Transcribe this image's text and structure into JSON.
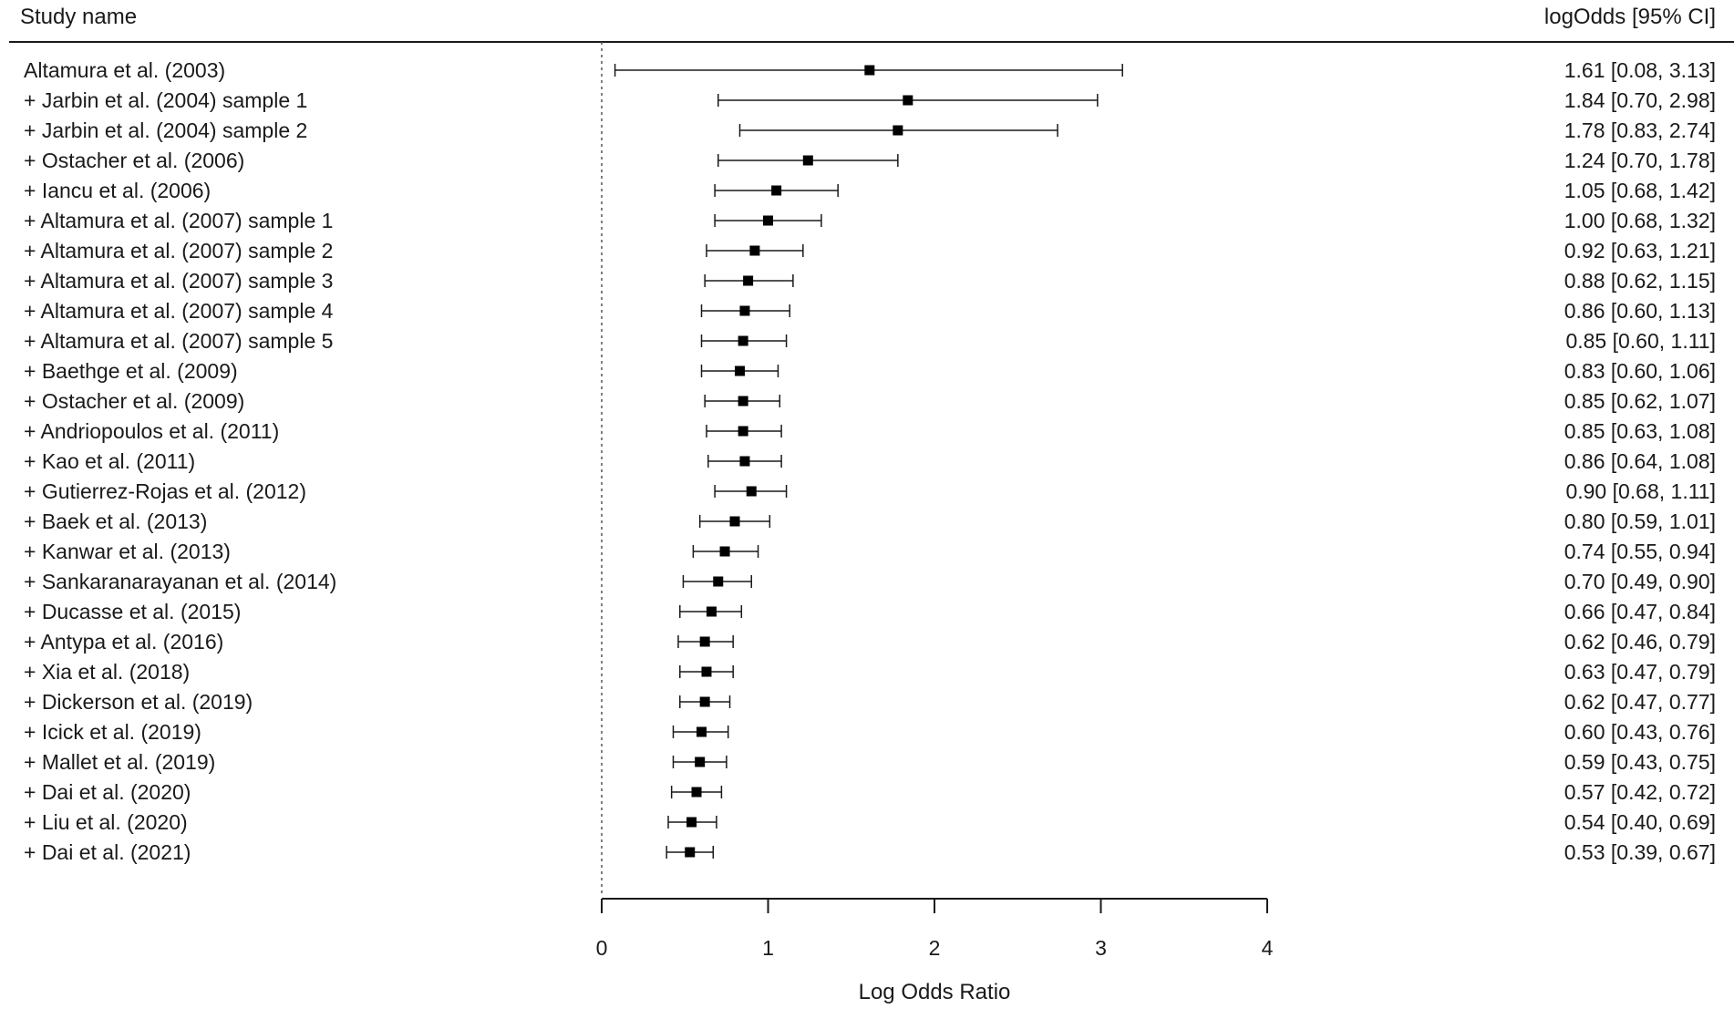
{
  "header": {
    "study_col": "Study name",
    "estimate_col": "logOdds [95% CI]"
  },
  "chart_data": {
    "type": "forest",
    "xlabel": "Log Odds Ratio",
    "xlim": [
      0,
      4
    ],
    "xticks": [
      0,
      1,
      2,
      3,
      4
    ],
    "reference_line": 0,
    "studies": [
      {
        "label": "Altamura et al. (2003)",
        "estimate": 1.61,
        "lower": 0.08,
        "upper": 3.13,
        "ci_text": "1.61 [0.08, 3.13]"
      },
      {
        "label": "+ Jarbin et al. (2004) sample 1",
        "estimate": 1.84,
        "lower": 0.7,
        "upper": 2.98,
        "ci_text": "1.84 [0.70, 2.98]"
      },
      {
        "label": "+ Jarbin et al. (2004) sample 2",
        "estimate": 1.78,
        "lower": 0.83,
        "upper": 2.74,
        "ci_text": "1.78 [0.83, 2.74]"
      },
      {
        "label": "+ Ostacher et al. (2006)",
        "estimate": 1.24,
        "lower": 0.7,
        "upper": 1.78,
        "ci_text": "1.24 [0.70, 1.78]"
      },
      {
        "label": "+ Iancu et al. (2006)",
        "estimate": 1.05,
        "lower": 0.68,
        "upper": 1.42,
        "ci_text": "1.05 [0.68, 1.42]"
      },
      {
        "label": "+ Altamura et al. (2007) sample 1",
        "estimate": 1.0,
        "lower": 0.68,
        "upper": 1.32,
        "ci_text": "1.00 [0.68, 1.32]"
      },
      {
        "label": "+ Altamura et al. (2007) sample 2",
        "estimate": 0.92,
        "lower": 0.63,
        "upper": 1.21,
        "ci_text": "0.92 [0.63, 1.21]"
      },
      {
        "label": "+ Altamura et al. (2007) sample 3",
        "estimate": 0.88,
        "lower": 0.62,
        "upper": 1.15,
        "ci_text": "0.88 [0.62, 1.15]"
      },
      {
        "label": "+ Altamura et al. (2007) sample 4",
        "estimate": 0.86,
        "lower": 0.6,
        "upper": 1.13,
        "ci_text": "0.86 [0.60, 1.13]"
      },
      {
        "label": "+ Altamura et al. (2007) sample 5",
        "estimate": 0.85,
        "lower": 0.6,
        "upper": 1.11,
        "ci_text": "0.85 [0.60, 1.11]"
      },
      {
        "label": "+ Baethge et al. (2009)",
        "estimate": 0.83,
        "lower": 0.6,
        "upper": 1.06,
        "ci_text": "0.83 [0.60, 1.06]"
      },
      {
        "label": "+ Ostacher et al. (2009)",
        "estimate": 0.85,
        "lower": 0.62,
        "upper": 1.07,
        "ci_text": "0.85 [0.62, 1.07]"
      },
      {
        "label": "+ Andriopoulos et al. (2011)",
        "estimate": 0.85,
        "lower": 0.63,
        "upper": 1.08,
        "ci_text": "0.85 [0.63, 1.08]"
      },
      {
        "label": "+ Kao et al. (2011)",
        "estimate": 0.86,
        "lower": 0.64,
        "upper": 1.08,
        "ci_text": "0.86 [0.64, 1.08]"
      },
      {
        "label": "+ Gutierrez-Rojas et al. (2012)",
        "estimate": 0.9,
        "lower": 0.68,
        "upper": 1.11,
        "ci_text": "0.90 [0.68, 1.11]"
      },
      {
        "label": "+ Baek et al. (2013)",
        "estimate": 0.8,
        "lower": 0.59,
        "upper": 1.01,
        "ci_text": "0.80 [0.59, 1.01]"
      },
      {
        "label": "+ Kanwar et al. (2013)",
        "estimate": 0.74,
        "lower": 0.55,
        "upper": 0.94,
        "ci_text": "0.74 [0.55, 0.94]"
      },
      {
        "label": "+ Sankaranarayanan et al. (2014)",
        "estimate": 0.7,
        "lower": 0.49,
        "upper": 0.9,
        "ci_text": "0.70 [0.49, 0.90]"
      },
      {
        "label": "+ Ducasse et al. (2015)",
        "estimate": 0.66,
        "lower": 0.47,
        "upper": 0.84,
        "ci_text": "0.66 [0.47, 0.84]"
      },
      {
        "label": "+ Antypa et al. (2016)",
        "estimate": 0.62,
        "lower": 0.46,
        "upper": 0.79,
        "ci_text": "0.62 [0.46, 0.79]"
      },
      {
        "label": "+ Xia et al. (2018)",
        "estimate": 0.63,
        "lower": 0.47,
        "upper": 0.79,
        "ci_text": "0.63 [0.47, 0.79]"
      },
      {
        "label": "+ Dickerson et al. (2019)",
        "estimate": 0.62,
        "lower": 0.47,
        "upper": 0.77,
        "ci_text": "0.62 [0.47, 0.77]"
      },
      {
        "label": "+ Icick et al. (2019)",
        "estimate": 0.6,
        "lower": 0.43,
        "upper": 0.76,
        "ci_text": "0.60 [0.43, 0.76]"
      },
      {
        "label": "+ Mallet et al. (2019)",
        "estimate": 0.59,
        "lower": 0.43,
        "upper": 0.75,
        "ci_text": "0.59 [0.43, 0.75]"
      },
      {
        "label": "+ Dai et al. (2020)",
        "estimate": 0.57,
        "lower": 0.42,
        "upper": 0.72,
        "ci_text": "0.57 [0.42, 0.72]"
      },
      {
        "label": "+ Liu et al. (2020)",
        "estimate": 0.54,
        "lower": 0.4,
        "upper": 0.69,
        "ci_text": "0.54 [0.40, 0.69]"
      },
      {
        "label": "+ Dai et al. (2021)",
        "estimate": 0.53,
        "lower": 0.39,
        "upper": 0.67,
        "ci_text": "0.53 [0.39, 0.67]"
      }
    ]
  }
}
